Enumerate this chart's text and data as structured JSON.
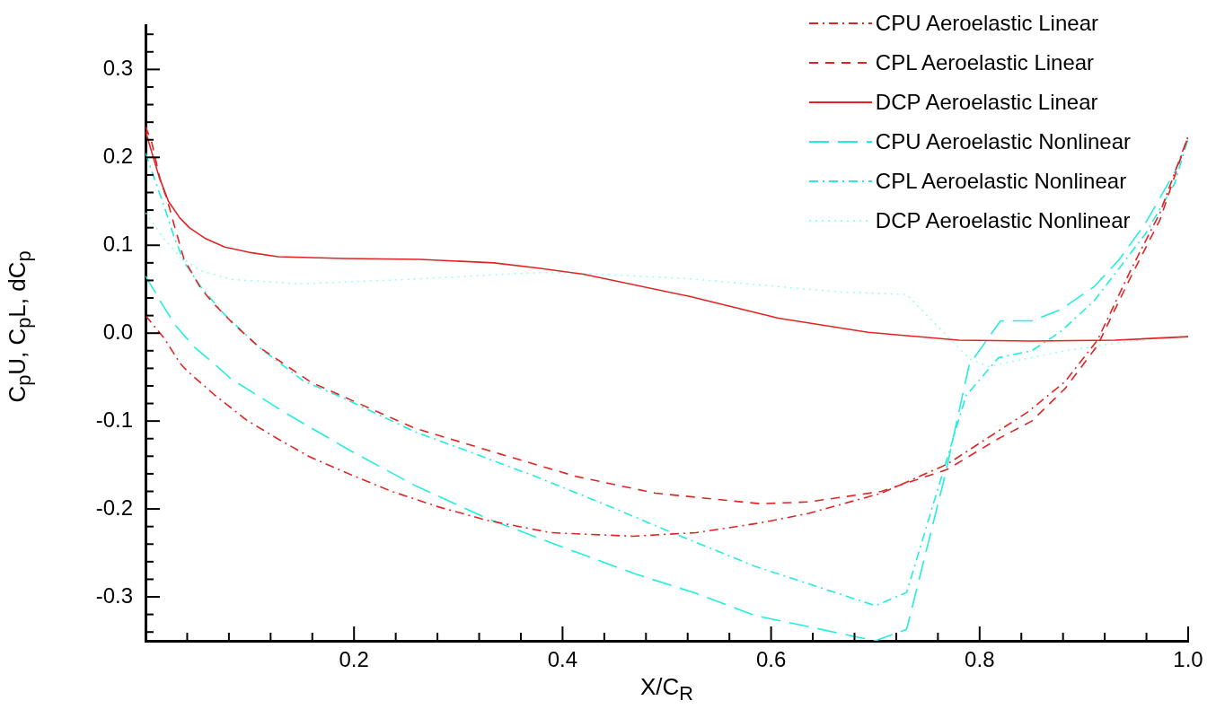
{
  "chart_data": {
    "type": "line",
    "xlabel": "X/C$_{R}$",
    "ylabel": "C$_{p}$U, C$_{p}$L, dC$_{p}$",
    "legend": "top right",
    "marker": "none",
    "xlim": [
      0,
      1
    ],
    "ylim": [
      -0.35,
      0.35
    ],
    "xticks": [
      {
        "value": 0.04,
        "label": null
      },
      {
        "value": 0.08,
        "label": null
      },
      {
        "value": 0.12,
        "label": null
      },
      {
        "value": 0.16,
        "label": null
      },
      0.2,
      {
        "value": 0.24,
        "label": null
      },
      {
        "value": 0.28,
        "label": null
      },
      {
        "value": 0.32,
        "label": null
      },
      {
        "value": 0.36,
        "label": null
      },
      0.4,
      {
        "value": 0.44,
        "label": null
      },
      {
        "value": 0.48,
        "label": null
      },
      {
        "value": 0.52,
        "label": null
      },
      {
        "value": 0.56,
        "label": null
      },
      0.6,
      {
        "value": 0.64,
        "label": null
      },
      {
        "value": 0.68,
        "label": null
      },
      {
        "value": 0.72,
        "label": null
      },
      {
        "value": 0.76,
        "label": null
      },
      0.8,
      {
        "value": 0.84,
        "label": null
      },
      {
        "value": 0.88,
        "label": null
      },
      {
        "value": 0.92,
        "label": null
      },
      {
        "value": 0.96,
        "label": null
      },
      {
        "value": 1,
        "label": "1.0"
      }
    ],
    "yticks": [
      {
        "value": -0.34,
        "label": null
      },
      {
        "value": -0.32,
        "label": null
      },
      -0.3,
      {
        "value": -0.28,
        "label": null
      },
      {
        "value": -0.26,
        "label": null
      },
      {
        "value": -0.24,
        "label": null
      },
      {
        "value": -0.22,
        "label": null
      },
      -0.2,
      {
        "value": -0.18,
        "label": null
      },
      {
        "value": -0.16,
        "label": null
      },
      {
        "value": -0.14,
        "label": null
      },
      {
        "value": -0.12,
        "label": null
      },
      -0.1,
      {
        "value": -0.08,
        "label": null
      },
      {
        "value": -0.06,
        "label": null
      },
      {
        "value": -0.04,
        "label": null
      },
      {
        "value": -0.02,
        "label": null
      },
      {
        "value": 0,
        "label": "0.0"
      },
      {
        "value": 0.02,
        "label": null
      },
      {
        "value": 0.04,
        "label": null
      },
      {
        "value": 0.06,
        "label": null
      },
      {
        "value": 0.08,
        "label": null
      },
      0.1,
      {
        "value": 0.12,
        "label": null
      },
      {
        "value": 0.14,
        "label": null
      },
      {
        "value": 0.16,
        "label": null
      },
      {
        "value": 0.18,
        "label": null
      },
      0.2,
      {
        "value": 0.22,
        "label": null
      },
      {
        "value": 0.24,
        "label": null
      },
      {
        "value": 0.26,
        "label": null
      },
      {
        "value": 0.28,
        "label": null
      },
      0.3,
      {
        "value": 0.32,
        "label": null
      },
      {
        "value": 0.34,
        "label": null
      }
    ],
    "series": [
      {
        "name": "CPU Aeroelastic Linear",
        "color": "#e02424",
        "line_style": "dashdot",
        "x": [
          0,
          0.018,
          0.033,
          0.04,
          0.066,
          0.097,
          0.128,
          0.158,
          0.197,
          0.236,
          0.282,
          0.328,
          0.389,
          0.467,
          0.528,
          0.589,
          0.636,
          0.706,
          0.769,
          0.847,
          0.882,
          0.913,
          0.945,
          0.973,
          1
        ],
        "values": [
          0.02,
          -0.006,
          -0.034,
          -0.043,
          -0.07,
          -0.099,
          -0.121,
          -0.141,
          -0.161,
          -0.18,
          -0.198,
          -0.213,
          -0.227,
          -0.231,
          -0.227,
          -0.216,
          -0.205,
          -0.182,
          -0.149,
          -0.089,
          -0.055,
          -0.008,
          0.072,
          0.137,
          0.224
        ]
      },
      {
        "name": "CPL Aeroelastic Linear",
        "color": "#e02424",
        "line_style": "dashed",
        "x": [
          0,
          0.006,
          0.014,
          0.021,
          0.028,
          0.037,
          0.053,
          0.065,
          0.084,
          0.109,
          0.159,
          0.197,
          0.258,
          0.336,
          0.413,
          0.489,
          0.589,
          0.636,
          0.706,
          0.769,
          0.818,
          0.85,
          0.882,
          0.913,
          0.945,
          0.973,
          1
        ],
        "values": [
          0.235,
          0.217,
          0.175,
          0.151,
          0.121,
          0.084,
          0.051,
          0.034,
          0.011,
          -0.016,
          -0.056,
          -0.076,
          -0.108,
          -0.136,
          -0.163,
          -0.182,
          -0.194,
          -0.192,
          -0.18,
          -0.155,
          -0.12,
          -0.1,
          -0.063,
          -0.014,
          0.064,
          0.129,
          0.224
        ]
      },
      {
        "name": "DCP Aeroelastic Linear",
        "color": "#e02424",
        "line_style": "solid",
        "x": [
          0,
          0.013,
          0.022,
          0.033,
          0.042,
          0.057,
          0.076,
          0.099,
          0.127,
          0.19,
          0.263,
          0.334,
          0.377,
          0.42,
          0.521,
          0.607,
          0.693,
          0.78,
          0.85,
          0.93,
          1
        ],
        "values": [
          0.23,
          0.178,
          0.15,
          0.131,
          0.12,
          0.108,
          0.098,
          0.092,
          0.087,
          0.085,
          0.084,
          0.08,
          0.074,
          0.067,
          0.042,
          0.017,
          0.001,
          -0.008,
          -0.009,
          -0.008,
          -0.004
        ]
      },
      {
        "name": "CPU Aeroelastic Nonlinear",
        "color": "#22eedd",
        "line_style": "longdash",
        "x": [
          0,
          0.017,
          0.03,
          0.047,
          0.067,
          0.082,
          0.136,
          0.194,
          0.258,
          0.328,
          0.397,
          0.47,
          0.528,
          0.584,
          0.7,
          0.73,
          0.766,
          0.79,
          0.82,
          0.85,
          0.878,
          0.91,
          0.934,
          0.959,
          0.987,
          1
        ],
        "values": [
          0.065,
          0.031,
          0.007,
          -0.016,
          -0.036,
          -0.052,
          -0.092,
          -0.132,
          -0.173,
          -0.211,
          -0.242,
          -0.274,
          -0.296,
          -0.321,
          -0.35,
          -0.337,
          -0.166,
          -0.036,
          0.014,
          0.014,
          0.027,
          0.053,
          0.084,
          0.125,
          0.183,
          0.22
        ]
      },
      {
        "name": "CPL Aeroelastic Nonlinear",
        "color": "#22eedd",
        "line_style": "dashdot",
        "x": [
          0,
          0.01,
          0.018,
          0.027,
          0.037,
          0.054,
          0.076,
          0.109,
          0.151,
          0.19,
          0.258,
          0.32,
          0.374,
          0.443,
          0.505,
          0.584,
          0.7,
          0.73,
          0.787,
          0.818,
          0.85,
          0.878,
          0.91,
          0.934,
          0.959,
          0.987,
          1
        ],
        "values": [
          0.205,
          0.171,
          0.144,
          0.111,
          0.081,
          0.051,
          0.021,
          -0.016,
          -0.054,
          -0.074,
          -0.112,
          -0.139,
          -0.163,
          -0.196,
          -0.227,
          -0.265,
          -0.31,
          -0.295,
          -0.071,
          -0.028,
          -0.02,
          0.002,
          0.037,
          0.074,
          0.113,
          0.17,
          0.222
        ]
      },
      {
        "name": "DCP Aeroelastic Nonlinear",
        "color": "#99fff0",
        "line_style": "dotted",
        "x": [
          0,
          0.018,
          0.033,
          0.053,
          0.084,
          0.147,
          0.248,
          0.377,
          0.42,
          0.521,
          0.664,
          0.73,
          0.79,
          0.808,
          0.882,
          0.952,
          1
        ],
        "values": [
          0.137,
          0.107,
          0.087,
          0.071,
          0.061,
          0.056,
          0.061,
          0.069,
          0.068,
          0.062,
          0.047,
          0.044,
          -0.029,
          -0.038,
          -0.02,
          -0.008,
          -0.003
        ]
      }
    ]
  }
}
